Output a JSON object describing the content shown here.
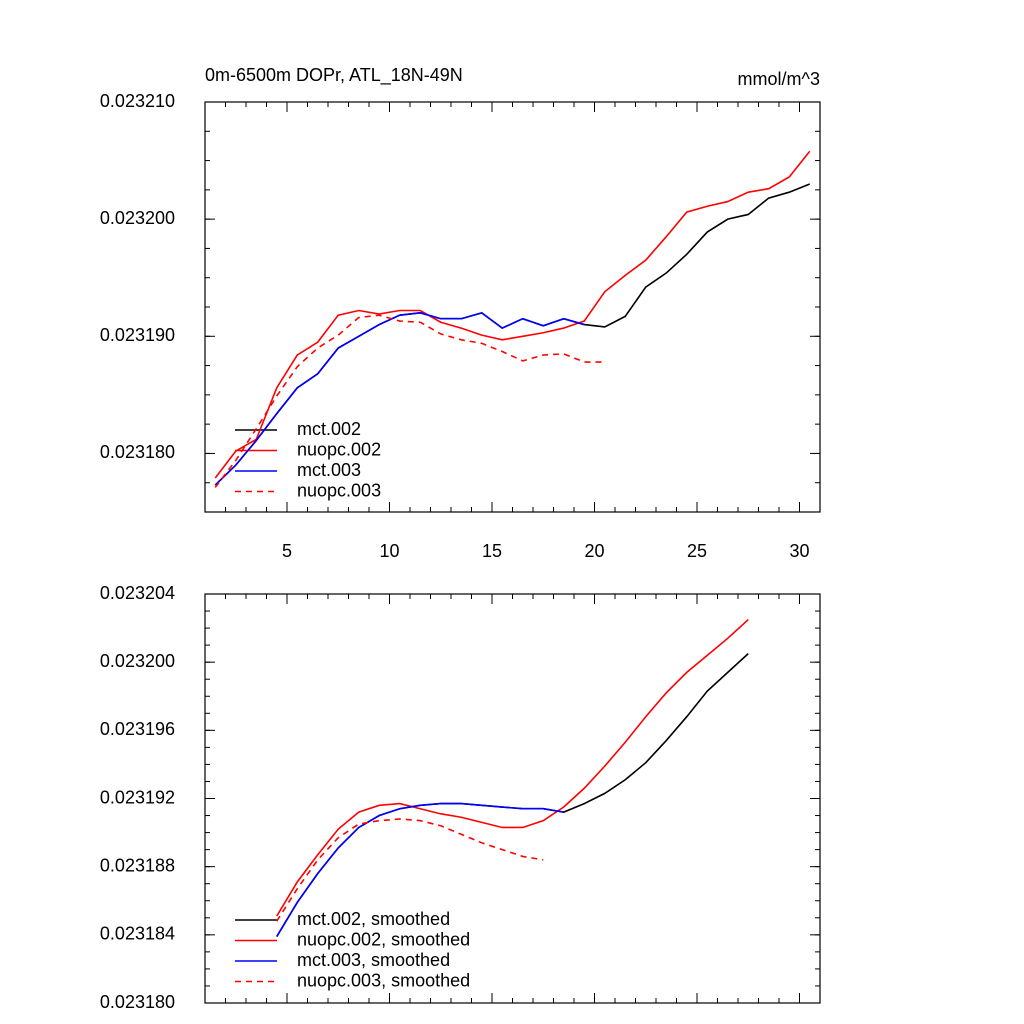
{
  "chart_data": [
    {
      "type": "line",
      "title": "0m-6500m DOPr, ATL_18N-49N",
      "units": "mmol/m^3",
      "xlim": [
        1,
        31
      ],
      "xticks": [
        5,
        10,
        15,
        20,
        25,
        30
      ],
      "ylim": [
        0.023175,
        0.02321
      ],
      "yticks": [
        {
          "value": 0.02318,
          "label": "0.023180"
        },
        {
          "value": 0.02319,
          "label": "0.023190"
        },
        {
          "value": 0.0232,
          "label": "0.023200"
        },
        {
          "value": 0.02321,
          "label": "0.023210"
        }
      ],
      "legend": "lower left",
      "series": [
        {
          "name": "mct.002",
          "color": "#000000",
          "dash": "solid",
          "x": [
            1.5,
            2.5,
            3.5,
            4.5,
            5.5,
            6.5,
            7.5,
            8.5,
            9.5,
            10.5,
            11.5,
            12.5,
            13.5,
            14.5,
            15.5,
            16.5,
            17.5,
            18.5,
            19.5,
            20.5,
            21.5,
            22.5,
            23.5,
            24.5,
            25.5,
            26.5,
            27.5,
            28.5,
            29.5,
            30.5
          ],
          "values": [
            0.0231773,
            0.023179,
            0.0231811,
            0.0231834,
            0.0231856,
            0.0231868,
            0.023189,
            0.02319,
            0.023191,
            0.0231918,
            0.023192,
            0.0231915,
            0.0231915,
            0.023192,
            0.0231907,
            0.0231915,
            0.0231909,
            0.0231915,
            0.023191,
            0.0231908,
            0.0231917,
            0.0231942,
            0.0231954,
            0.023197,
            0.0231989,
            0.0232,
            0.0232004,
            0.0232018,
            0.0232023,
            0.023203
          ]
        },
        {
          "name": "nuopc.002",
          "color": "#ff0000",
          "dash": "solid",
          "x": [
            1.5,
            2.5,
            3.5,
            4.5,
            5.5,
            6.5,
            7.5,
            8.5,
            9.5,
            10.5,
            11.5,
            12.5,
            13.5,
            14.5,
            15.5,
            16.5,
            17.5,
            18.5,
            19.5,
            20.5,
            21.5,
            22.5,
            23.5,
            24.5,
            25.5,
            26.5,
            27.5,
            28.5,
            29.5,
            30.5
          ],
          "values": [
            0.0231779,
            0.0231802,
            0.0231812,
            0.0231856,
            0.0231884,
            0.0231895,
            0.0231918,
            0.0231922,
            0.0231919,
            0.0231922,
            0.0231922,
            0.0231912,
            0.0231907,
            0.0231901,
            0.0231897,
            0.02319,
            0.0231903,
            0.0231907,
            0.0231913,
            0.0231938,
            0.0231952,
            0.0231965,
            0.0231985,
            0.0232006,
            0.0232011,
            0.0232015,
            0.0232023,
            0.0232026,
            0.0232036,
            0.0232058
          ]
        },
        {
          "name": "mct.003",
          "color": "#0000ff",
          "dash": "solid",
          "x": [
            1.5,
            2.5,
            3.5,
            4.5,
            5.5,
            6.5,
            7.5,
            8.5,
            9.5,
            10.5,
            11.5,
            12.5,
            13.5,
            14.5,
            15.5,
            16.5,
            17.5,
            18.5,
            19.5
          ],
          "values": [
            0.0231773,
            0.023179,
            0.0231811,
            0.0231834,
            0.0231856,
            0.0231868,
            0.023189,
            0.02319,
            0.023191,
            0.0231918,
            0.023192,
            0.0231915,
            0.0231915,
            0.023192,
            0.0231907,
            0.0231915,
            0.0231909,
            0.0231915,
            0.023191
          ]
        },
        {
          "name": "nuopc.003",
          "color": "#ff0000",
          "dash": "dashed",
          "x": [
            1.5,
            2.5,
            3.5,
            4.5,
            5.5,
            6.5,
            7.5,
            8.5,
            9.5,
            10.5,
            11.5,
            12.5,
            13.5,
            14.5,
            15.5,
            16.5,
            17.5,
            18.5,
            19.5,
            20.5
          ],
          "values": [
            0.0231771,
            0.0231794,
            0.0231821,
            0.0231849,
            0.0231874,
            0.023189,
            0.0231901,
            0.0231916,
            0.0231918,
            0.0231913,
            0.0231912,
            0.0231902,
            0.0231897,
            0.0231894,
            0.0231887,
            0.0231879,
            0.0231884,
            0.0231885,
            0.0231878,
            0.0231878
          ]
        }
      ]
    },
    {
      "type": "line",
      "xlim": [
        1,
        31
      ],
      "xticks": [
        5,
        10,
        15,
        20,
        25,
        30
      ],
      "xtick_labels": false,
      "ylim": [
        0.02318,
        0.023204
      ],
      "yticks": [
        {
          "value": 0.02318,
          "label": "0.023180"
        },
        0.023184,
        0.023188,
        0.023192,
        0.023196,
        {
          "value": 0.0232,
          "label": "0.023200"
        },
        0.023204
      ],
      "legend": "lower left",
      "series": [
        {
          "name": "mct.002, smoothed",
          "color": "#000000",
          "dash": "solid",
          "x": [
            4.5,
            5.5,
            6.5,
            7.5,
            8.5,
            9.5,
            10.5,
            11.5,
            12.5,
            13.5,
            14.5,
            15.5,
            16.5,
            17.5,
            18.5,
            19.5,
            20.5,
            21.5,
            22.5,
            23.5,
            24.5,
            25.5,
            26.5,
            27.5
          ],
          "values": [
            0.0231839,
            0.0231859,
            0.0231876,
            0.0231891,
            0.0231903,
            0.023191,
            0.0231914,
            0.0231916,
            0.0231917,
            0.0231917,
            0.0231916,
            0.0231915,
            0.0231914,
            0.0231914,
            0.0231912,
            0.0231917,
            0.0231923,
            0.0231931,
            0.0231941,
            0.0231954,
            0.0231968,
            0.0231983,
            0.0231994,
            0.0232005
          ]
        },
        {
          "name": "nuopc.002, smoothed",
          "color": "#ff0000",
          "dash": "solid",
          "x": [
            4.5,
            5.5,
            6.5,
            7.5,
            8.5,
            9.5,
            10.5,
            11.5,
            12.5,
            13.5,
            14.5,
            15.5,
            16.5,
            17.5,
            18.5,
            19.5,
            20.5,
            21.5,
            22.5,
            23.5,
            24.5,
            25.5,
            26.5,
            27.5
          ],
          "values": [
            0.0231851,
            0.0231871,
            0.0231887,
            0.0231902,
            0.0231912,
            0.0231916,
            0.0231917,
            0.0231914,
            0.0231911,
            0.0231909,
            0.0231906,
            0.0231903,
            0.0231903,
            0.0231907,
            0.0231915,
            0.0231926,
            0.0231939,
            0.0231953,
            0.0231968,
            0.0231982,
            0.0231994,
            0.0232004,
            0.0232014,
            0.0232025
          ]
        },
        {
          "name": "mct.003, smoothed",
          "color": "#0000ff",
          "dash": "solid",
          "x": [
            4.5,
            5.5,
            6.5,
            7.5,
            8.5,
            9.5,
            10.5,
            11.5,
            12.5,
            13.5,
            14.5,
            15.5,
            16.5,
            17.5,
            18.5
          ],
          "values": [
            0.0231839,
            0.0231859,
            0.0231876,
            0.0231891,
            0.0231903,
            0.023191,
            0.0231914,
            0.0231916,
            0.0231917,
            0.0231917,
            0.0231916,
            0.0231915,
            0.0231914,
            0.0231914,
            0.0231912
          ]
        },
        {
          "name": "nuopc.003, smoothed",
          "color": "#ff0000",
          "dash": "dashed",
          "x": [
            4.5,
            5.5,
            6.5,
            7.5,
            8.5,
            9.5,
            10.5,
            11.5,
            12.5,
            13.5,
            14.5,
            15.5,
            16.5,
            17.5
          ],
          "values": [
            0.0231848,
            0.0231867,
            0.0231884,
            0.0231897,
            0.0231905,
            0.0231907,
            0.0231908,
            0.0231907,
            0.0231904,
            0.0231899,
            0.0231894,
            0.023189,
            0.0231886,
            0.0231884
          ]
        }
      ]
    }
  ]
}
